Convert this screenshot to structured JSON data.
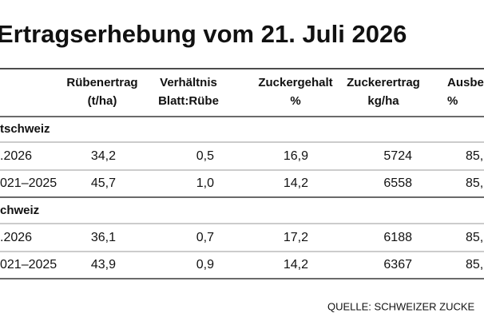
{
  "title": "Ertragserhebung vom 21. Juli 2026",
  "table": {
    "header": [
      [
        "Rübenertrag",
        "(t/ha)"
      ],
      [
        "Verhältnis",
        "Blatt:Rübe"
      ],
      [
        "Zuckergehalt",
        "%"
      ],
      [
        "Zuckerertrag",
        "kg/ha"
      ],
      [
        "Ausbe",
        "%"
      ]
    ],
    "sections": [
      {
        "name": "tschweiz",
        "rows": [
          [
            ".2026",
            "34,2",
            "0,5",
            "16,9",
            "5724",
            "85,"
          ],
          [
            "021–2025",
            "45,7",
            "1,0",
            "14,2",
            "6558",
            "85,"
          ]
        ]
      },
      {
        "name": "chweiz",
        "rows": [
          [
            ".2026",
            "36,1",
            "0,7",
            "17,2",
            "6188",
            "85,"
          ],
          [
            "021–2025",
            "43,9",
            "0,9",
            "14,2",
            "6367",
            "85,"
          ]
        ]
      }
    ]
  },
  "source": "QUELLE: SCHWEIZER ZUCKE"
}
